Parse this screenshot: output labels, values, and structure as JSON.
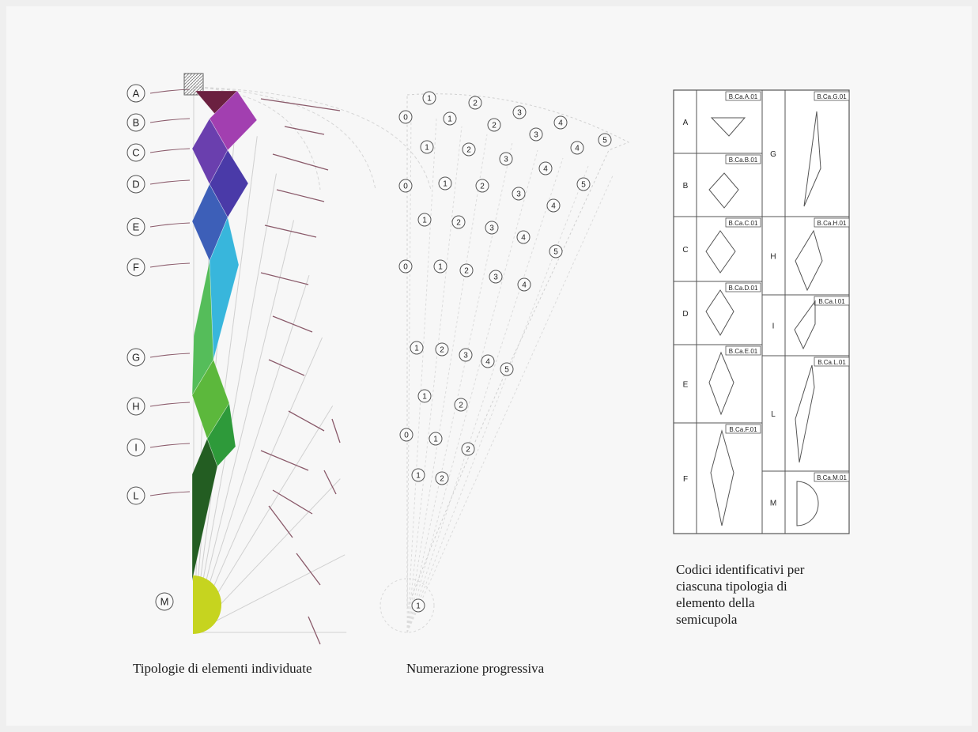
{
  "captions": {
    "typologies": "Tipologie di elementi individuate",
    "numbering": "Numerazione progressiva",
    "codes_lines": [
      "Codici identificativi per",
      "ciascuna tipologia di",
      "elemento della",
      "semicupola"
    ]
  },
  "row_labels": [
    "A",
    "B",
    "C",
    "D",
    "E",
    "F",
    "G",
    "H",
    "I",
    "L",
    "M"
  ],
  "element_colors": {
    "A": "#6b2040",
    "B": "#a23fb0",
    "C": "#6a3fae",
    "D": "#4a3aa8",
    "E": "#3d5fb8",
    "F": "#38b6dc",
    "G": "#55bd5a",
    "H": "#5cb83c",
    "I": "#2e9a3a",
    "L": "#235d22",
    "M": "#c6d41f"
  },
  "numbering_rows": [
    [
      "1",
      "2",
      "3"
    ],
    [
      "0",
      "1",
      "2",
      "3",
      "4",
      "5"
    ],
    [
      "1",
      "2",
      "3",
      "4",
      "4"
    ],
    [
      "0",
      "1",
      "2",
      "3",
      "4",
      "5"
    ],
    [
      "1",
      "2",
      "3",
      "4",
      "5"
    ],
    [
      "0",
      "1",
      "2",
      "3",
      "4"
    ],
    [
      "1",
      "2",
      "3",
      "4",
      "5"
    ],
    [
      "1",
      "2"
    ],
    [
      "0",
      "1",
      "2"
    ],
    [
      "1",
      "2"
    ],
    [
      "1"
    ]
  ],
  "code_table": {
    "left": [
      {
        "letter": "A",
        "code": "B.Ca.A.01"
      },
      {
        "letter": "B",
        "code": "B.Ca.B.01"
      },
      {
        "letter": "C",
        "code": "B.Ca.C.01"
      },
      {
        "letter": "D",
        "code": "B.Ca.D.01"
      },
      {
        "letter": "E",
        "code": "B.Ca.E.01"
      },
      {
        "letter": "F",
        "code": "B.Ca.F.01"
      }
    ],
    "right": [
      {
        "letter": "G",
        "code": "B.Ca.G.01"
      },
      {
        "letter": "H",
        "code": "B.Ca.H.01"
      },
      {
        "letter": "I",
        "code": "B.Ca.I.01"
      },
      {
        "letter": "L",
        "code": "B.Ca.L.01"
      },
      {
        "letter": "M",
        "code": "B.Ca.M.01"
      }
    ]
  }
}
